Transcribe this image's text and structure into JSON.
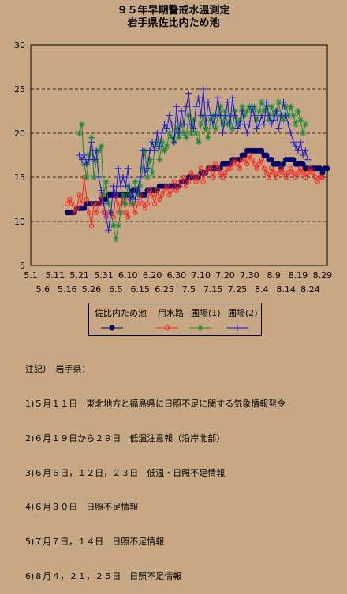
{
  "chart_data": {
    "type": "line",
    "title": "９５年早期警戒水温測定",
    "subtitle": "岩手県佐比内ため池",
    "ylim": [
      5,
      30
    ],
    "yticks": [
      5,
      10,
      15,
      20,
      25,
      30
    ],
    "x_start": "5.1",
    "x_end": "8.31",
    "xticks_top": [
      "5.1",
      "5.11",
      "5.21",
      "5.31",
      "6.10",
      "6.20",
      "6.30",
      "7.10",
      "7.20",
      "7.30",
      "8.9",
      "8.19",
      "8.29"
    ],
    "xticks_bottom": [
      "5.6",
      "5.16",
      "5.26",
      "6.5",
      "6.15",
      "6.25",
      "7.5",
      "7.15",
      "7.25",
      "8.4",
      "8.14",
      "8.24"
    ],
    "grid": "horizontal-dashed",
    "series": [
      {
        "name": "佐比内ため池",
        "color": "#000066",
        "marker": "filled-circle",
        "start": "5.16",
        "values": [
          11,
          11,
          11,
          11,
          11.5,
          11.5,
          11.5,
          11.5,
          12,
          12,
          12,
          12,
          12,
          12,
          12.5,
          12.5,
          12.5,
          13,
          13,
          13,
          13,
          13,
          13,
          13,
          13,
          13,
          13,
          13.5,
          13.5,
          13.5,
          13,
          13,
          13,
          13.5,
          13.5,
          13.5,
          13.5,
          13.5,
          14,
          14,
          14,
          14,
          14,
          14,
          14,
          14,
          14,
          14.5,
          14.5,
          14.5,
          15,
          15,
          15,
          15,
          15,
          15.5,
          15.5,
          15.5,
          16,
          16,
          16,
          16,
          16,
          16,
          16.5,
          16.5,
          16.5,
          16.5,
          17,
          17,
          17,
          17,
          17.5,
          17.5,
          18,
          18,
          18,
          18,
          18,
          18,
          18,
          17.5,
          17.5,
          17,
          17,
          16.5,
          16.5,
          16.5,
          16,
          16.5,
          17,
          17,
          17,
          17,
          16.5,
          16.5,
          16.5,
          16.5,
          16,
          16,
          16,
          16,
          16,
          16,
          16,
          15.5,
          16,
          16
        ]
      },
      {
        "name": "用水路",
        "color": "#ff2020",
        "marker": "open-circle",
        "start": "5.16",
        "values": [
          12,
          12.5,
          12,
          11,
          11.5,
          13,
          12,
          15,
          12.5,
          11,
          9.5,
          12,
          11,
          12,
          13,
          11,
          10.5,
          11,
          11,
          10.5,
          13,
          11,
          12,
          12.5,
          11,
          10.5,
          13,
          12,
          11,
          12,
          13,
          12,
          11.5,
          12,
          13.5,
          13,
          12,
          13.5,
          12.5,
          13,
          13.5,
          14,
          13,
          13.5,
          14.5,
          13.5,
          14,
          14.5,
          15,
          14,
          14.5,
          15.5,
          15,
          14.5,
          15,
          16,
          14.5,
          15.5,
          16,
          16,
          15,
          16.5,
          16,
          15.5,
          15,
          15.5,
          16,
          16,
          16.5,
          17,
          16.5,
          16,
          17,
          17,
          16.5,
          17.5,
          17,
          16.5,
          16,
          16.5,
          17,
          16,
          15.5,
          15,
          16,
          15.5,
          15,
          15.5,
          16,
          15.5,
          15,
          15.5,
          16,
          15.5,
          15,
          15.5,
          16,
          15.5,
          15,
          15.5,
          16,
          15.5,
          15,
          14.5,
          15,
          15
        ]
      },
      {
        "name": "圃場(1)",
        "color": "#1a8a3a",
        "marker": "asterisk",
        "start": "5.21",
        "values": [
          20,
          21,
          16.5,
          15,
          17.5,
          19.5,
          15,
          17,
          18,
          18.5,
          13,
          14.5,
          12,
          11,
          9.5,
          8,
          9.5,
          11,
          13,
          12,
          14,
          13,
          12,
          14.5,
          13,
          14,
          16,
          18,
          15,
          17,
          15.5,
          18.5,
          19,
          17,
          19,
          18,
          18.5,
          20,
          19.5,
          19,
          20.5,
          19.5,
          21,
          20,
          19.5,
          22,
          20,
          21.5,
          20,
          19,
          21,
          22,
          20.5,
          19.5,
          21.5,
          22,
          20.5,
          22,
          23,
          21,
          22.5,
          21,
          22,
          20.5,
          22.5,
          21,
          21.5,
          23,
          22,
          22.5,
          23,
          22.5,
          23,
          21.5,
          22.5,
          23.5,
          22.5,
          23,
          21.5,
          23,
          22,
          22.5,
          23.5,
          22,
          21.5,
          23,
          22,
          23,
          22,
          21,
          22.5,
          21.5,
          20,
          21
        ]
      },
      {
        "name": "圃場(2)",
        "color": "#1515e0",
        "marker": "plus",
        "start": "5.21",
        "values": [
          17.5,
          17,
          17.5,
          16.5,
          17,
          19,
          17,
          18,
          15,
          13.5,
          12,
          10.5,
          9,
          11,
          14,
          13,
          16,
          14,
          15,
          14,
          16,
          12.5,
          13,
          12.5,
          13.5,
          15,
          18,
          15.5,
          16,
          18,
          19,
          18,
          20,
          18.5,
          20,
          21,
          20.5,
          22,
          21,
          19,
          23,
          20,
          22.5,
          21,
          23,
          24.5,
          21,
          20.5,
          23,
          24,
          22,
          25,
          21,
          23.5,
          22,
          21,
          22,
          24,
          22,
          20,
          22,
          23.5,
          21,
          24,
          22,
          20.5,
          21,
          22.5,
          21,
          20,
          21,
          23,
          22,
          20.5,
          21,
          22,
          21,
          23.5,
          22,
          21,
          21.5,
          22.5,
          20.5,
          22,
          23.5,
          22,
          21,
          20,
          19,
          18.5,
          18,
          19,
          17.5,
          18,
          17
        ]
      }
    ]
  },
  "legend": {
    "labels": [
      "佐比内ため池",
      "用水路",
      "圃場(1)",
      "圃場(2)"
    ]
  },
  "notes": {
    "header": "注記）　岩手県：",
    "items": [
      "1)５月１１日　東北地方と福島県に日照不足に関する気象情報発令",
      "2)６月１９日から２９日　低温注意報（沿岸北部）",
      "3)６月６日，１２日，２３日　低温・日照不足情報",
      "4)６月３０日　日照不足情報",
      "5)７月７日，１４日　日照不足情報",
      "6)８月４，２１，２５日　日照不足情報"
    ]
  }
}
